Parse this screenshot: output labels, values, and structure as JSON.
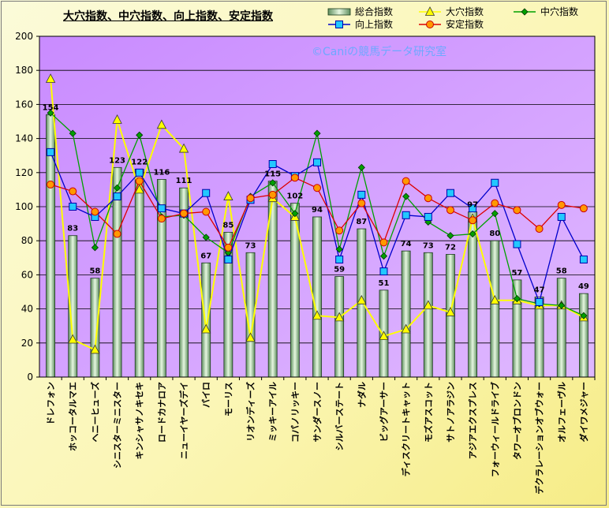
{
  "chart_data": {
    "type": "bar",
    "title": "大穴指数、中穴指数、向上指数、安定指数",
    "watermark": "©Caniの競馬データ研究室",
    "ylim": [
      0,
      200
    ],
    "yticks": [
      0,
      20,
      40,
      60,
      80,
      100,
      120,
      140,
      160,
      180,
      200
    ],
    "categories": [
      "ドレフォン",
      "ホッコータルマエ",
      "ヘニーヒューズ",
      "シニスターミニスター",
      "キンシャサノキセキ",
      "ロードカナロア",
      "ニューイヤーズデイ",
      "パイロ",
      "モーリス",
      "リオンディーズ",
      "ミッキーアイル",
      "コパノリッキー",
      "サンダースノー",
      "シルバーステート",
      "ナダル",
      "ビッグアーサー",
      "ディスクリートキャット",
      "モズアスコット",
      "サトノアラジン",
      "アジアエクスプレス",
      "フォーウィールドライブ",
      "タワーオブロンドン",
      "デクラレーションオブウォー",
      "オルフェーヴル",
      "ダイワメジャー"
    ],
    "series": [
      {
        "name": "総合指数",
        "type": "bar",
        "color": "#c8e6c0",
        "values": [
          154,
          83,
          58,
          123,
          122,
          116,
          111,
          67,
          85,
          73,
          115,
          102,
          94,
          59,
          87,
          51,
          74,
          73,
          72,
          97,
          80,
          57,
          47,
          58,
          49
        ]
      },
      {
        "name": "大穴指数",
        "type": "line",
        "color": "#ffff00",
        "marker": "triangle",
        "values": [
          175,
          22,
          16,
          151,
          110,
          148,
          134,
          28,
          106,
          23,
          105,
          94,
          36,
          35,
          45,
          24,
          28,
          42,
          38,
          93,
          45,
          45,
          42,
          42,
          35
        ]
      },
      {
        "name": "中穴指数",
        "type": "line",
        "color": "#00a000",
        "marker": "diamond",
        "values": [
          155,
          143,
          76,
          111,
          142,
          94,
          95,
          82,
          73,
          106,
          114,
          96,
          143,
          75,
          123,
          71,
          106,
          91,
          83,
          84,
          96,
          46,
          43,
          42,
          36
        ]
      },
      {
        "name": "向上指数",
        "type": "line",
        "color": "#0000cc",
        "marker": "square",
        "values": [
          132,
          100,
          94,
          106,
          120,
          99,
          96,
          108,
          69,
          104,
          125,
          118,
          126,
          69,
          107,
          62,
          95,
          94,
          108,
          99,
          114,
          78,
          44,
          94,
          69
        ]
      },
      {
        "name": "安定指数",
        "type": "line",
        "color": "#dd0000",
        "marker": "circle",
        "values": [
          113,
          109,
          97,
          84,
          115,
          93,
          96,
          97,
          76,
          105,
          107,
          117,
          111,
          86,
          102,
          79,
          115,
          105,
          98,
          92,
          102,
          98,
          87,
          101,
          99
        ]
      }
    ]
  }
}
